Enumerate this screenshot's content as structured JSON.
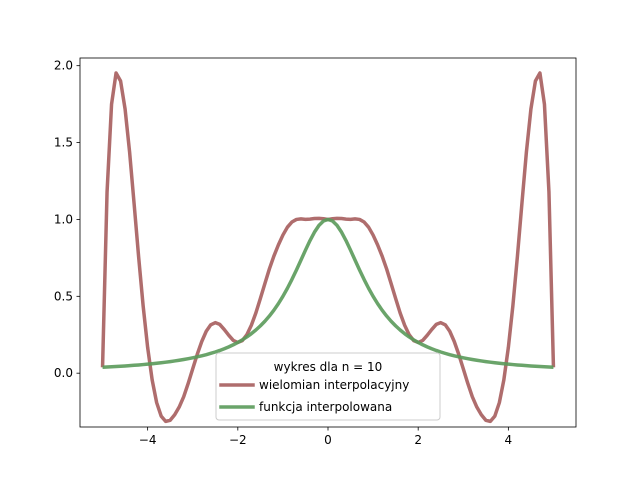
{
  "chart_data": {
    "type": "line",
    "title": "",
    "xlabel": "",
    "ylabel": "",
    "xlim": [
      -5.5,
      5.5
    ],
    "ylim": [
      -0.35,
      2.05
    ],
    "grid": false,
    "x_ticks": [
      -4,
      -2,
      0,
      2,
      4
    ],
    "x_tick_labels": [
      "−4",
      "−2",
      "0",
      "2",
      "4"
    ],
    "y_ticks": [
      0.0,
      0.5,
      1.0,
      1.5,
      2.0
    ],
    "y_tick_labels": [
      "0.0",
      "0.5",
      "1.0",
      "1.5",
      "2.0"
    ],
    "legend": {
      "placement": "lower-center",
      "title": "wykres dla n = 10",
      "entries": [
        "wielomian interpolacyjny",
        "funkcja interpolowana"
      ]
    },
    "series": [
      {
        "name": "wielomian interpolacyjny",
        "color": "#a65d5d",
        "x": [
          -5.0,
          -4.9,
          -4.8,
          -4.7,
          -4.6,
          -4.5,
          -4.4,
          -4.3,
          -4.2,
          -4.1,
          -4.0,
          -3.9,
          -3.8,
          -3.7,
          -3.6,
          -3.5,
          -3.4,
          -3.3,
          -3.2,
          -3.1,
          -3.0,
          -2.9,
          -2.8,
          -2.7,
          -2.6,
          -2.5,
          -2.4,
          -2.3,
          -2.2,
          -2.1,
          -2.0,
          -1.9,
          -1.8,
          -1.7,
          -1.6,
          -1.5,
          -1.4,
          -1.3,
          -1.2,
          -1.1,
          -1.0,
          -0.9,
          -0.8,
          -0.7,
          -0.6,
          -0.5,
          -0.4,
          -0.3,
          -0.2,
          -0.1,
          0.0,
          0.1,
          0.2,
          0.3,
          0.4,
          0.5,
          0.6,
          0.7,
          0.8,
          0.9,
          1.0,
          1.1,
          1.2,
          1.3,
          1.4,
          1.5,
          1.6,
          1.7,
          1.8,
          1.9,
          2.0,
          2.1,
          2.2,
          2.3,
          2.4,
          2.5,
          2.6,
          2.7,
          2.8,
          2.9,
          3.0,
          3.1,
          3.2,
          3.3,
          3.4,
          3.5,
          3.6,
          3.7,
          3.8,
          3.9,
          4.0,
          4.1,
          4.2,
          4.3,
          4.4,
          4.5,
          4.6,
          4.7,
          4.8,
          4.9,
          5.0
        ],
        "y": [
          0.0385,
          1.1783,
          1.7495,
          1.9525,
          1.9002,
          1.7178,
          1.4381,
          1.102,
          0.7574,
          0.4384,
          0.1678,
          -0.0434,
          -0.1915,
          -0.279,
          -0.3134,
          -0.3062,
          -0.2705,
          -0.2201,
          -0.1529,
          -0.0661,
          0.0287,
          0.1223,
          0.2061,
          0.2728,
          0.3147,
          0.3287,
          0.3171,
          0.2836,
          0.2461,
          0.2131,
          0.2,
          0.2121,
          0.2501,
          0.3115,
          0.3913,
          0.4855,
          0.5823,
          0.678,
          0.7617,
          0.8345,
          0.8984,
          0.9496,
          0.9834,
          1.0,
          1.0034,
          1.0003,
          1.0022,
          1.006,
          1.007,
          1.0047,
          1.0,
          1.0047,
          1.007,
          1.006,
          1.0022,
          1.0003,
          1.0034,
          1.0,
          0.9834,
          0.9496,
          0.8984,
          0.8345,
          0.7617,
          0.678,
          0.5823,
          0.4855,
          0.3913,
          0.3115,
          0.2501,
          0.2121,
          0.2,
          0.2131,
          0.2461,
          0.2836,
          0.3171,
          0.3287,
          0.3147,
          0.2728,
          0.2061,
          0.1223,
          0.0287,
          -0.0661,
          -0.1529,
          -0.2201,
          -0.2705,
          -0.3062,
          -0.3134,
          -0.279,
          -0.1915,
          -0.0434,
          0.1678,
          0.4384,
          0.7574,
          1.102,
          1.4381,
          1.7178,
          1.9002,
          1.9525,
          1.7495,
          1.1783,
          0.0385
        ]
      },
      {
        "name": "funkcja interpolowana",
        "color": "#5a9a5a",
        "x": [
          -5.0,
          -4.9,
          -4.8,
          -4.7,
          -4.6,
          -4.5,
          -4.4,
          -4.3,
          -4.2,
          -4.1,
          -4.0,
          -3.9,
          -3.8,
          -3.7,
          -3.6,
          -3.5,
          -3.4,
          -3.3,
          -3.2,
          -3.1,
          -3.0,
          -2.9,
          -2.8,
          -2.7,
          -2.6,
          -2.5,
          -2.4,
          -2.3,
          -2.2,
          -2.1,
          -2.0,
          -1.9,
          -1.8,
          -1.7,
          -1.6,
          -1.5,
          -1.4,
          -1.3,
          -1.2,
          -1.1,
          -1.0,
          -0.9,
          -0.8,
          -0.7,
          -0.6,
          -0.5,
          -0.4,
          -0.3,
          -0.2,
          -0.1,
          0.0,
          0.1,
          0.2,
          0.3,
          0.4,
          0.5,
          0.6,
          0.7,
          0.8,
          0.9,
          1.0,
          1.1,
          1.2,
          1.3,
          1.4,
          1.5,
          1.6,
          1.7,
          1.8,
          1.9,
          2.0,
          2.1,
          2.2,
          2.3,
          2.4,
          2.5,
          2.6,
          2.7,
          2.8,
          2.9,
          3.0,
          3.1,
          3.2,
          3.3,
          3.4,
          3.5,
          3.6,
          3.7,
          3.8,
          3.9,
          4.0,
          4.1,
          4.2,
          4.3,
          4.4,
          4.5,
          4.6,
          4.7,
          4.8,
          4.9,
          5.0
        ],
        "y": [
          0.0385,
          0.04,
          0.0416,
          0.0433,
          0.0451,
          0.0471,
          0.0491,
          0.0513,
          0.0536,
          0.0561,
          0.0588,
          0.0617,
          0.0648,
          0.0681,
          0.0716,
          0.0755,
          0.0796,
          0.0841,
          0.089,
          0.0942,
          0.1,
          0.1063,
          0.1131,
          0.1206,
          0.1289,
          0.1379,
          0.1479,
          0.159,
          0.1712,
          0.1848,
          0.2,
          0.2169,
          0.2358,
          0.2571,
          0.2809,
          0.3077,
          0.3378,
          0.3717,
          0.4098,
          0.4525,
          0.5,
          0.5525,
          0.6098,
          0.6711,
          0.7353,
          0.8,
          0.8621,
          0.9174,
          0.9615,
          0.9901,
          1.0,
          0.9901,
          0.9615,
          0.9174,
          0.8621,
          0.8,
          0.7353,
          0.6711,
          0.6098,
          0.5525,
          0.5,
          0.4525,
          0.4098,
          0.3717,
          0.3378,
          0.3077,
          0.2809,
          0.2571,
          0.2358,
          0.2169,
          0.2,
          0.1848,
          0.1712,
          0.159,
          0.1479,
          0.1379,
          0.1289,
          0.1206,
          0.1131,
          0.1063,
          0.1,
          0.0942,
          0.089,
          0.0841,
          0.0796,
          0.0755,
          0.0716,
          0.0681,
          0.0648,
          0.0617,
          0.0588,
          0.0561,
          0.0536,
          0.0513,
          0.0491,
          0.0471,
          0.0451,
          0.0433,
          0.0416,
          0.04,
          0.0385
        ]
      }
    ]
  }
}
